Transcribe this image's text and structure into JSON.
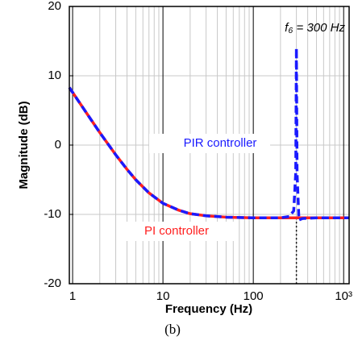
{
  "chart_data": {
    "type": "line",
    "xlabel": "Frequency (Hz)",
    "ylabel": "Magnitude (dB)",
    "caption": "(b)",
    "x": [
      0.92,
      1,
      1.5,
      2,
      3,
      4,
      5,
      7,
      10,
      15,
      20,
      30,
      50,
      100,
      200,
      250,
      280,
      295,
      300,
      305,
      320,
      350,
      500,
      1000,
      1150
    ],
    "series": [
      {
        "name": "PI controller",
        "color": "#ff2020",
        "values": [
          8.3,
          7.6,
          4.2,
          1.8,
          -1.4,
          -3.5,
          -5.0,
          -6.9,
          -8.4,
          -9.4,
          -9.9,
          -10.2,
          -10.4,
          -10.5,
          -10.5,
          -10.5,
          -10.5,
          -10.5,
          -10.5,
          -10.5,
          -10.5,
          -10.5,
          -10.5,
          -10.5,
          -10.5
        ]
      },
      {
        "name": "PIR controller",
        "color": "#1a1aff",
        "values": [
          8.3,
          7.6,
          4.2,
          1.8,
          -1.4,
          -3.5,
          -5.0,
          -6.9,
          -8.4,
          -9.4,
          -9.9,
          -10.2,
          -10.4,
          -10.5,
          -10.5,
          -10.3,
          -9.5,
          -4,
          14,
          -4,
          -10.8,
          -10.6,
          -10.5,
          -10.5,
          -10.5
        ]
      }
    ],
    "annotation": "f₆ = 300 Hz",
    "marker_x": 300,
    "xscale": "log",
    "xlim": [
      0.92,
      1150
    ],
    "xticks": [
      1,
      10,
      100,
      {
        "value": 1000,
        "label": "10³"
      }
    ],
    "ylim": [
      -20,
      20
    ],
    "yticks": [
      -20,
      -10,
      0,
      10,
      20
    ],
    "grid": true
  }
}
